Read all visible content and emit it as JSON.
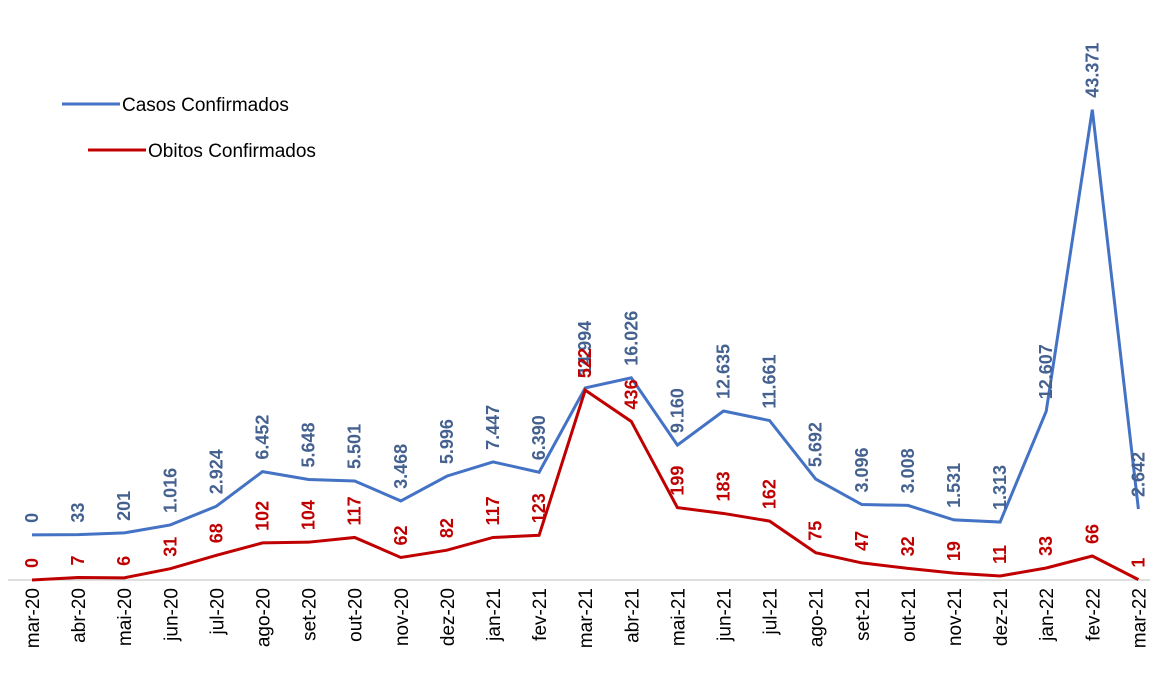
{
  "chart_data": {
    "type": "line",
    "categories": [
      "mar-20",
      "abr-20",
      "mai-20",
      "jun-20",
      "jul-20",
      "ago-20",
      "set-20",
      "out-20",
      "nov-20",
      "dez-20",
      "jan-21",
      "fev-21",
      "mar-21",
      "abr-21",
      "mai-21",
      "jun-21",
      "jul-21",
      "ago-21",
      "set-21",
      "out-21",
      "nov-21",
      "dez-21",
      "jan-22",
      "fev-22",
      "mar-22"
    ],
    "series": [
      {
        "name": "Casos Confirmados",
        "color": "#4472c4",
        "label_color": "#44618f",
        "values": [
          0,
          33,
          201,
          1016,
          2924,
          6452,
          5648,
          5501,
          3468,
          5996,
          7447,
          6390,
          14994,
          16026,
          9160,
          12635,
          11661,
          5692,
          3096,
          3008,
          1531,
          1313,
          12607,
          43371,
          2642
        ],
        "value_labels": [
          "0",
          "33",
          "201",
          "1.016",
          "2.924",
          "6.452",
          "5.648",
          "5.501",
          "3.468",
          "5.996",
          "7.447",
          "6.390",
          "14.994",
          "16.026",
          "9.160",
          "12.635",
          "11.661",
          "5.692",
          "3.096",
          "3.008",
          "1.531",
          "1.313",
          "12.607",
          "43.371",
          "2.642"
        ]
      },
      {
        "name": "Obitos Confirmados",
        "color": "#c00000",
        "label_color": "#c00000",
        "axis": "y2",
        "values": [
          0,
          7,
          6,
          31,
          68,
          102,
          104,
          117,
          62,
          82,
          117,
          123,
          522,
          436,
          199,
          183,
          162,
          75,
          47,
          32,
          19,
          11,
          33,
          66,
          1
        ]
      }
    ],
    "ylim": [
      -4600,
      46400
    ],
    "y2lim": [
      0,
      1375
    ],
    "legend": "top-left"
  }
}
